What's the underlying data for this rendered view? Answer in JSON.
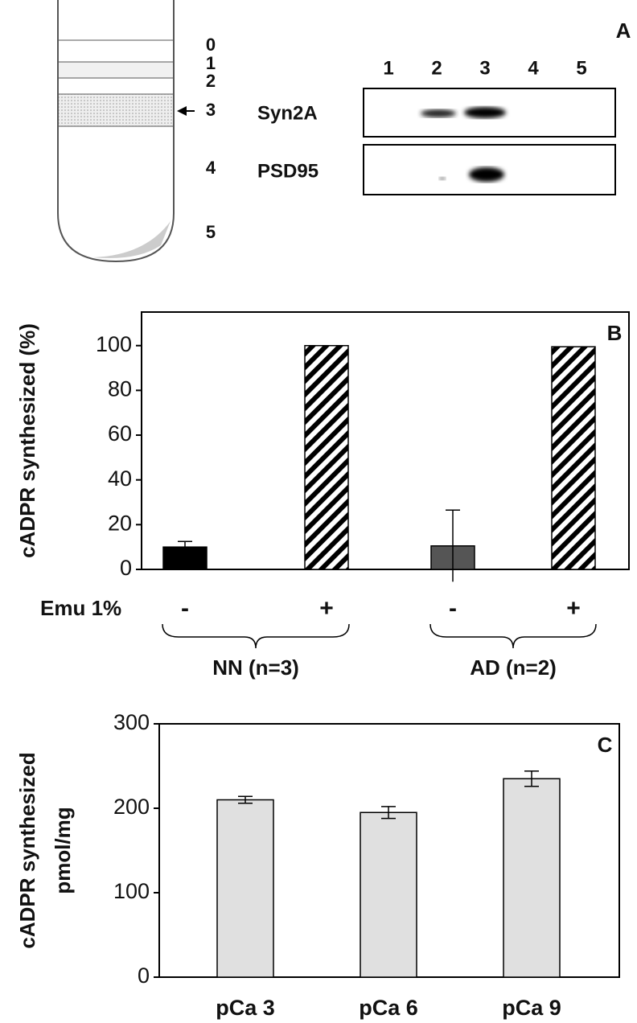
{
  "panel_a": {
    "label": "A",
    "fractions": [
      "0",
      "1",
      "2",
      "3",
      "4",
      "5"
    ],
    "lanes": [
      "1",
      "2",
      "3",
      "4",
      "5"
    ],
    "proteins": [
      "Syn2A",
      "PSD95"
    ]
  },
  "chart_data": [
    {
      "type": "bar",
      "label": "B",
      "ylabel": "cADPR synthesized  (%)",
      "category_title": "Emu 1%",
      "categories": [
        "-",
        "+",
        "-",
        "+"
      ],
      "groups": [
        "NN (n=3)",
        "AD (n=2)"
      ],
      "values": [
        10,
        100,
        10.5,
        99.5
      ],
      "errors": [
        2.5,
        null,
        16,
        null
      ],
      "colors": [
        "#000000",
        "hatch",
        "#555555",
        "hatch"
      ],
      "ylim": [
        0,
        115
      ],
      "yticks": [
        0,
        20,
        40,
        60,
        80,
        100
      ]
    },
    {
      "type": "bar",
      "label": "C",
      "ylabel": [
        "cADPR synthesized",
        "pmol/mg"
      ],
      "categories": [
        "pCa 3",
        "pCa 6",
        "pCa 9"
      ],
      "values": [
        210,
        195,
        235
      ],
      "errors": [
        4,
        7,
        9
      ],
      "colors": [
        "#e0e0e0",
        "#e0e0e0",
        "#e0e0e0"
      ],
      "ylim": [
        0,
        300
      ],
      "yticks": [
        0,
        100,
        200,
        300
      ]
    }
  ]
}
